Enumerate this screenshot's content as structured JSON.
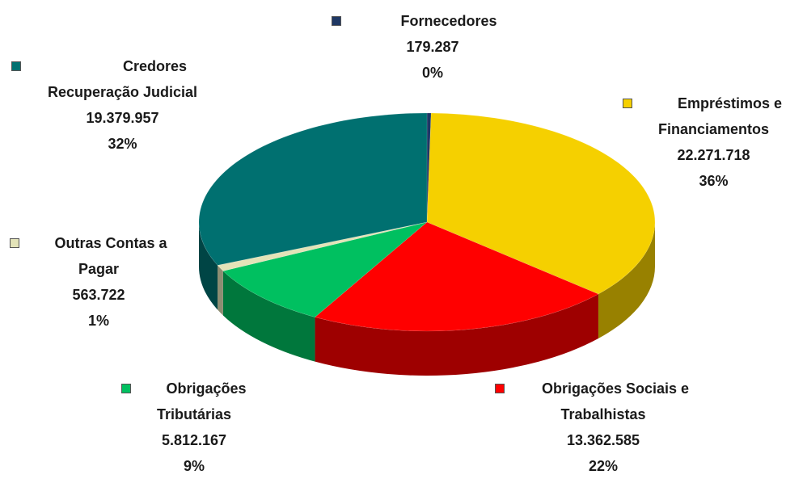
{
  "chart_data": {
    "type": "pie3d",
    "categories": [
      "Fornecedores",
      "Empréstimos e Financiamentos",
      "Obrigações Sociais e Trabalhistas",
      "Obrigações Tributárias",
      "Outras Contas a Pagar",
      "Credores Recuperação Judicial"
    ],
    "values": [
      179287,
      22271718,
      13362585,
      5812167,
      563722,
      19379957
    ],
    "value_labels": [
      "179.287",
      "22.271.718",
      "13.362.585",
      "5.812.167",
      "563.722",
      "19.379.957"
    ],
    "percent_labels": [
      "0%",
      "36%",
      "22%",
      "9%",
      "1%",
      "32%"
    ],
    "colors": [
      "#1f3864",
      "#f5d000",
      "#ff0000",
      "#00c060",
      "#e3e3b8",
      "#007070"
    ]
  }
}
